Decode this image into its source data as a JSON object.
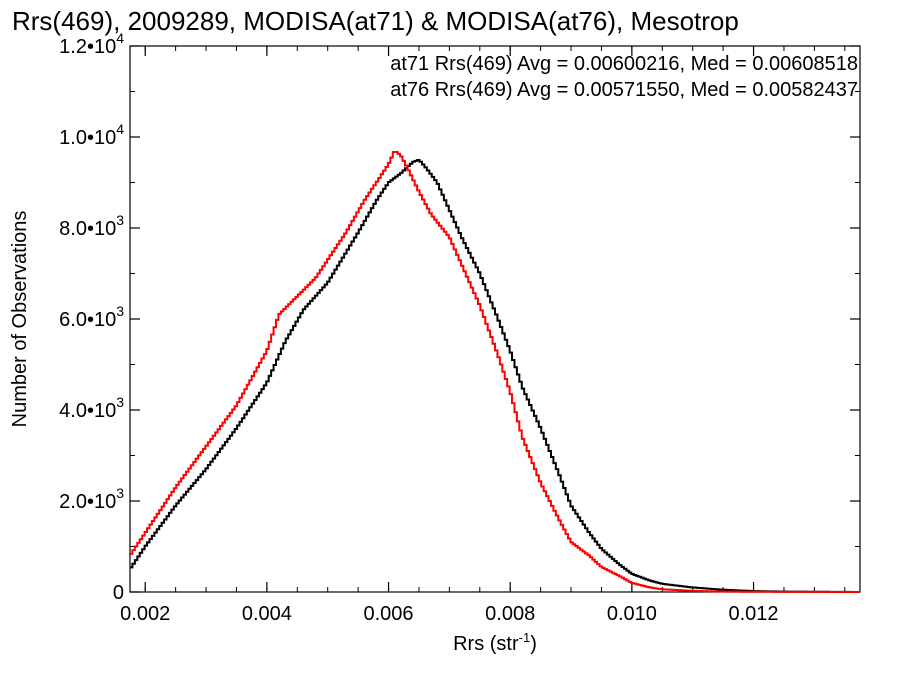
{
  "chart_data": {
    "type": "line",
    "title": "Rrs(469), 2009289, MODISA(at71) & MODISA(at76), Mesotrop",
    "xlabel": "Rrs (str",
    "xlabel_sup": "-1",
    "xlabel_close": ")",
    "ylabel": "Number of Observations",
    "xlim": [
      0.00175,
      0.01375
    ],
    "ylim": [
      0,
      12000
    ],
    "x_ticks": [
      {
        "value": 0.002,
        "label": "0.002"
      },
      {
        "value": 0.004,
        "label": "0.004"
      },
      {
        "value": 0.006,
        "label": "0.006"
      },
      {
        "value": 0.008,
        "label": "0.008"
      },
      {
        "value": 0.01,
        "label": "0.010"
      },
      {
        "value": 0.012,
        "label": "0.012"
      }
    ],
    "y_ticks": [
      {
        "value": 0,
        "mant": "0",
        "exp": ""
      },
      {
        "value": 2000,
        "mant": "2.0•10",
        "exp": "3"
      },
      {
        "value": 4000,
        "mant": "4.0•10",
        "exp": "3"
      },
      {
        "value": 6000,
        "mant": "6.0•10",
        "exp": "3"
      },
      {
        "value": 8000,
        "mant": "8.0•10",
        "exp": "3"
      },
      {
        "value": 10000,
        "mant": "1.0•10",
        "exp": "4"
      },
      {
        "value": 12000,
        "mant": "1.2•10",
        "exp": "4"
      }
    ],
    "legend_placement": "top-right",
    "grid": false,
    "series": [
      {
        "name": "at71",
        "color": "#000000",
        "label": "at71 Rrs(469) Avg = 0.00600216, Med = 0.00608518",
        "x": [
          0.00175,
          0.002,
          0.0025,
          0.003,
          0.0035,
          0.004,
          0.0043,
          0.0046,
          0.005,
          0.0055,
          0.0058,
          0.006,
          0.0062,
          0.0064,
          0.0065,
          0.0066,
          0.0068,
          0.007,
          0.0072,
          0.0075,
          0.0078,
          0.008,
          0.0082,
          0.0085,
          0.0088,
          0.009,
          0.0093,
          0.0095,
          0.0098,
          0.01,
          0.0103,
          0.0105,
          0.011,
          0.0115,
          0.012,
          0.0125,
          0.01375
        ],
        "y": [
          500,
          1000,
          1900,
          2700,
          3600,
          4600,
          5500,
          6200,
          6800,
          7900,
          8600,
          9000,
          9200,
          9450,
          9500,
          9350,
          9000,
          8400,
          7800,
          7000,
          6000,
          5300,
          4500,
          3600,
          2600,
          1900,
          1300,
          950,
          600,
          400,
          250,
          180,
          100,
          50,
          20,
          10,
          0
        ]
      },
      {
        "name": "at76",
        "color": "#ff0000",
        "label": "at76 Rrs(469) Avg = 0.00571550, Med = 0.00582437",
        "x": [
          0.00175,
          0.002,
          0.0025,
          0.003,
          0.0035,
          0.004,
          0.0042,
          0.0045,
          0.0048,
          0.005,
          0.0053,
          0.0056,
          0.0058,
          0.006,
          0.0061,
          0.0062,
          0.0063,
          0.0065,
          0.0067,
          0.007,
          0.0072,
          0.0075,
          0.0078,
          0.008,
          0.0082,
          0.0085,
          0.0088,
          0.009,
          0.0093,
          0.0095,
          0.0098,
          0.01,
          0.0103,
          0.0105,
          0.011,
          0.0115,
          0.012,
          0.01375
        ],
        "y": [
          800,
          1300,
          2300,
          3200,
          4100,
          5300,
          6100,
          6500,
          6900,
          7300,
          7900,
          8600,
          9000,
          9400,
          9700,
          9600,
          9350,
          8800,
          8300,
          7800,
          7200,
          6300,
          5200,
          4400,
          3400,
          2400,
          1600,
          1100,
          800,
          550,
          350,
          200,
          100,
          60,
          25,
          10,
          5,
          0
        ]
      }
    ]
  }
}
